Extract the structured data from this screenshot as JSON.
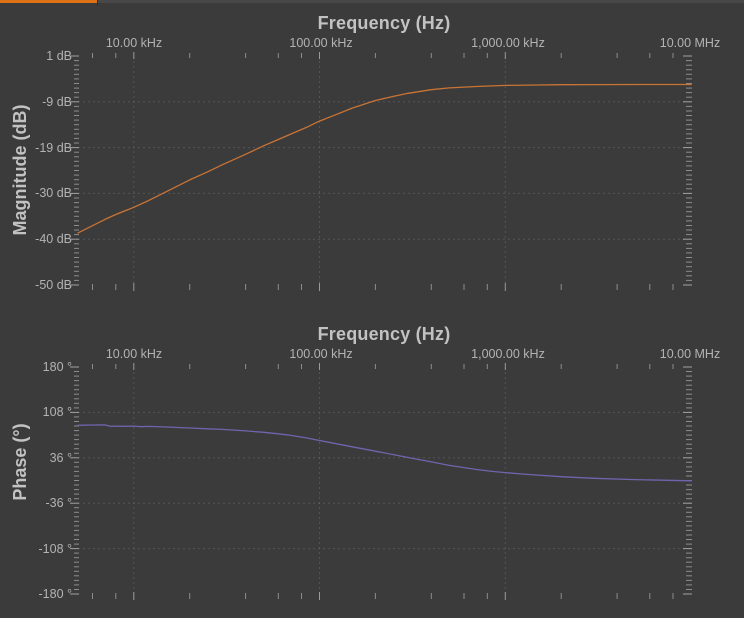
{
  "app": {
    "accent_bar_color": "#dd7217",
    "background_color": "#3b3b3b"
  },
  "chart_data": [
    {
      "type": "line",
      "title": "Frequency (Hz)",
      "ylabel": "Magnitude (dB)",
      "x_scale": "log",
      "grid": true,
      "x_range_hz": [
        5010,
        10000000
      ],
      "y_range": [
        1,
        -50
      ],
      "x_ticks": [
        {
          "f": 10000,
          "label": "10.00 kHz"
        },
        {
          "f": 100000,
          "label": "100.00 kHz"
        },
        {
          "f": 1000000,
          "label": "1,000.00 kHz"
        },
        {
          "f": 10000000,
          "label": "10.00 MHz"
        }
      ],
      "y_ticks": [
        "1 dB",
        "-9 dB",
        "-19 dB",
        "-30 dB",
        "-40 dB",
        "-50 dB"
      ],
      "series": [
        {
          "name": "magnitude",
          "color": "#c97435",
          "points": [
            [
              5010,
              -38.4
            ],
            [
              6000,
              -36.8
            ],
            [
              7000,
              -35.4
            ],
            [
              8000,
              -34.3
            ],
            [
              10000,
              -32.7
            ],
            [
              12000,
              -31.2
            ],
            [
              15000,
              -29.2
            ],
            [
              20000,
              -26.6
            ],
            [
              25000,
              -24.8
            ],
            [
              30000,
              -23.2
            ],
            [
              40000,
              -20.9
            ],
            [
              50000,
              -19.0
            ],
            [
              60000,
              -17.6
            ],
            [
              70000,
              -16.4
            ],
            [
              85000,
              -14.9
            ],
            [
              100000,
              -13.5
            ],
            [
              120000,
              -12.2
            ],
            [
              150000,
              -10.6
            ],
            [
              200000,
              -8.9
            ],
            [
              250000,
              -8.0
            ],
            [
              300000,
              -7.3
            ],
            [
              400000,
              -6.5
            ],
            [
              500000,
              -6.1
            ],
            [
              700000,
              -5.8
            ],
            [
              1000000,
              -5.55
            ],
            [
              1500000,
              -5.45
            ],
            [
              2000000,
              -5.4
            ],
            [
              3000000,
              -5.37
            ],
            [
              5000000,
              -5.35
            ],
            [
              7000000,
              -5.35
            ],
            [
              10000000,
              -5.35
            ]
          ]
        }
      ]
    },
    {
      "type": "line",
      "title": "Frequency (Hz)",
      "ylabel": "Phase (°)",
      "x_scale": "log",
      "grid": true,
      "x_range_hz": [
        5010,
        10000000
      ],
      "y_range": [
        180,
        -180
      ],
      "x_ticks": [
        {
          "f": 10000,
          "label": "10.00 kHz"
        },
        {
          "f": 100000,
          "label": "100.00 kHz"
        },
        {
          "f": 1000000,
          "label": "1,000.00 kHz"
        },
        {
          "f": 10000000,
          "label": "10.00 MHz"
        }
      ],
      "y_ticks": [
        "180 °",
        "108 °",
        "36 °",
        "-36 °",
        "-108 °",
        "-180 °"
      ],
      "series": [
        {
          "name": "phase",
          "color": "#7164ae",
          "points": [
            [
              5010,
              87.5
            ],
            [
              6000,
              88.0
            ],
            [
              7000,
              88.2
            ],
            [
              7500,
              85.8
            ],
            [
              8000,
              86.3
            ],
            [
              9000,
              86.0
            ],
            [
              10000,
              86.2
            ],
            [
              11000,
              85.3
            ],
            [
              12000,
              85.8
            ],
            [
              15000,
              84.8
            ],
            [
              20000,
              83.2
            ],
            [
              25000,
              82.0
            ],
            [
              30000,
              81.0
            ],
            [
              40000,
              78.6
            ],
            [
              50000,
              76.4
            ],
            [
              60000,
              74.0
            ],
            [
              70000,
              71.5
            ],
            [
              85000,
              67.5
            ],
            [
              100000,
              63.5
            ],
            [
              120000,
              59.0
            ],
            [
              150000,
              53.5
            ],
            [
              200000,
              46.5
            ],
            [
              250000,
              41.0
            ],
            [
              300000,
              36.5
            ],
            [
              400000,
              29.5
            ],
            [
              500000,
              24.0
            ],
            [
              600000,
              20.5
            ],
            [
              700000,
              17.5
            ],
            [
              850000,
              14.5
            ],
            [
              1000000,
              12.5
            ],
            [
              1200000,
              10.5
            ],
            [
              1500000,
              8.5
            ],
            [
              2000000,
              6.0
            ],
            [
              3000000,
              3.5
            ],
            [
              5000000,
              1.5
            ],
            [
              7000000,
              0.5
            ],
            [
              10000000,
              -0.5
            ]
          ]
        }
      ]
    }
  ]
}
